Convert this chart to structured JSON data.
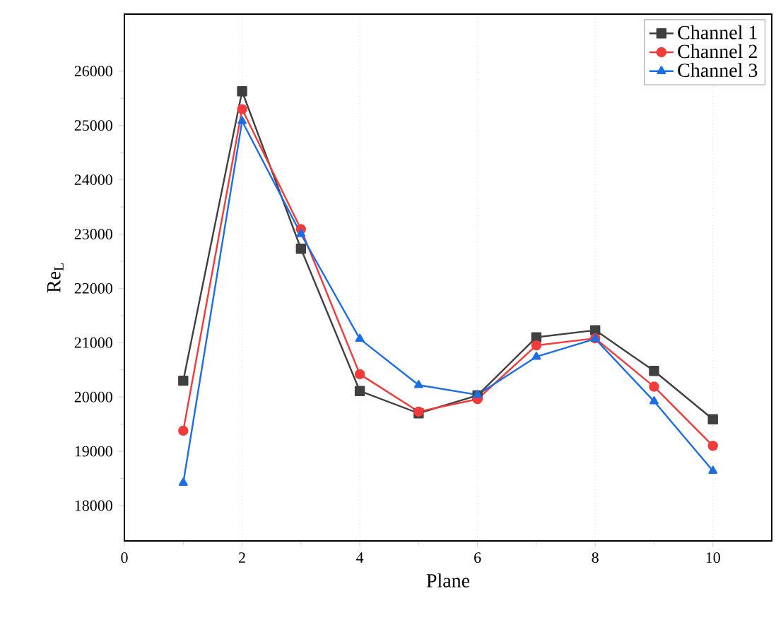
{
  "chart_data": {
    "type": "line",
    "xlabel": "Plane",
    "ylabel": "Re$_{L}$",
    "x": [
      1,
      2,
      3,
      4,
      5,
      6,
      7,
      8,
      9,
      10
    ],
    "series": [
      {
        "name": "Channel 1",
        "color": "#404040",
        "marker": "square",
        "values": [
          20300,
          25630,
          22730,
          20110,
          19700,
          20030,
          21100,
          21230,
          20480,
          19590
        ]
      },
      {
        "name": "Channel 2",
        "color": "#f23b3b",
        "marker": "circle",
        "values": [
          19380,
          25300,
          23090,
          20420,
          19730,
          19960,
          20950,
          21080,
          20190,
          19100
        ]
      },
      {
        "name": "Channel 3",
        "color": "#1d6ee5",
        "marker": "triangle",
        "values": [
          18420,
          25080,
          23000,
          21070,
          20220,
          20040,
          20740,
          21070,
          19920,
          18640
        ]
      }
    ],
    "xlim": [
      0,
      11
    ],
    "ylim": [
      17350,
      27050
    ],
    "xticks": [
      0,
      2,
      4,
      6,
      8,
      10
    ],
    "yticks": [
      18000,
      19000,
      20000,
      21000,
      22000,
      23000,
      24000,
      25000,
      26000
    ],
    "grid": "x",
    "legend": "top right",
    "line_style": "solid"
  }
}
